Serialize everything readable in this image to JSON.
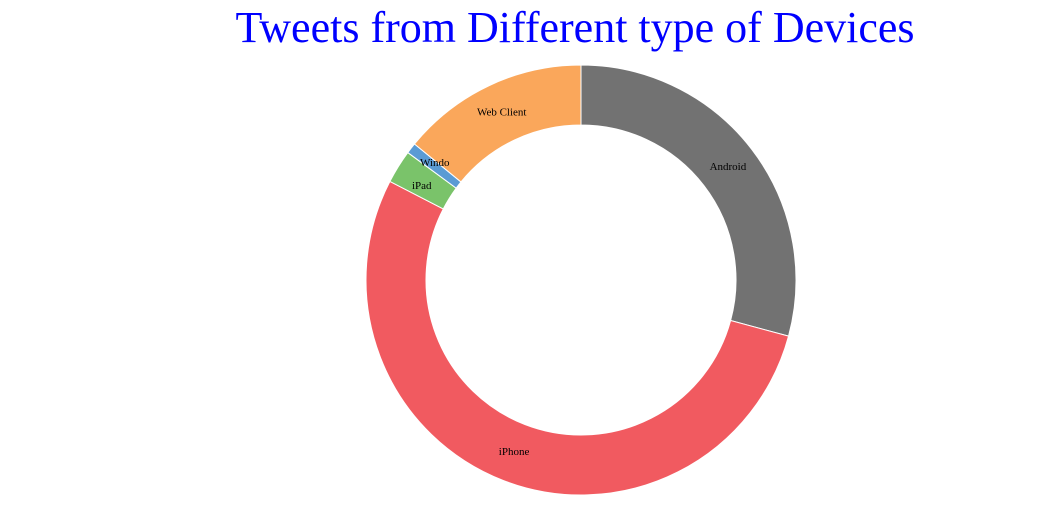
{
  "chart_data": {
    "type": "pie",
    "title": "Tweets from Different type of Devices",
    "categories": [
      "Android",
      "iPhone",
      "iPad",
      "Windows",
      "Web Client"
    ],
    "values": [
      29,
      53,
      2.5,
      0.8,
      14
    ],
    "colors": {
      "Android": "#727272",
      "iPhone": "#f15a60",
      "iPad": "#7ac36a",
      "Windows": "#5a9bd4",
      "Web Client": "#faa75b"
    },
    "slice_labels": {
      "Android": "Android",
      "iPhone": "iPhone",
      "iPad": "iPad",
      "Windows": "Windo",
      "Web Client": "Web Client"
    },
    "donut": true,
    "legend": "none",
    "grid": false
  }
}
